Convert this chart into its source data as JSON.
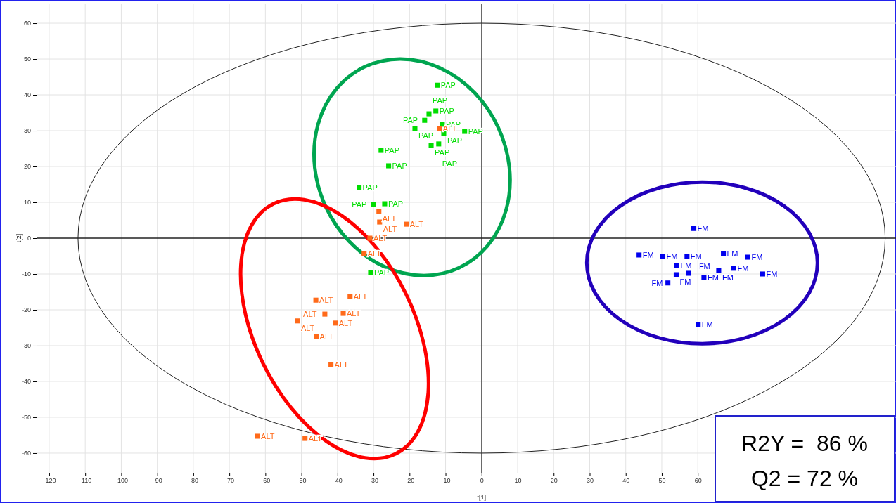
{
  "chart_data": {
    "type": "scatter",
    "xlabel": "t[1]",
    "ylabel": "t[2]",
    "xlim": [
      -123.5,
      115
    ],
    "ylim": [
      -65.5,
      65.5
    ],
    "xticks": [
      -120,
      -110,
      -100,
      -90,
      -80,
      -70,
      -60,
      -50,
      -40,
      -30,
      -20,
      -10,
      0,
      10,
      20,
      30,
      40,
      50,
      60
    ],
    "yticks": [
      -60,
      -50,
      -40,
      -30,
      -20,
      -10,
      0,
      10,
      20,
      30,
      40,
      50,
      60
    ],
    "grid": true,
    "legend": false,
    "marker": "square",
    "ref_lines": [
      {
        "axis": "x",
        "value": 0,
        "color": "#555555"
      },
      {
        "axis": "y",
        "value": 0,
        "color": "#222222"
      }
    ],
    "annotations": [
      "R2Y =  86 %",
      "Q2 = 72 %"
    ],
    "series": [
      {
        "name": "PAP",
        "color": "#00dd00",
        "x": [
          -12.3,
          -12.7,
          -14.6,
          -15.8,
          -10.9,
          -18.5,
          -10.5,
          -4.7,
          -14.0,
          -11.9,
          -27.9,
          -25.8,
          -34.0,
          -30.0,
          -26.9,
          -30.8
        ],
        "values": [
          42.7,
          35.5,
          34.7,
          32.9,
          31.8,
          30.6,
          29.2,
          29.8,
          25.9,
          26.3,
          24.5,
          20.2,
          14.1,
          9.4,
          9.6,
          -9.6
        ]
      },
      {
        "name": "ALT",
        "color": "#ff6a1a",
        "x": [
          -11.7,
          -28.5,
          -28.3,
          -20.9,
          -31.0,
          -32.6,
          -46.0,
          -36.5,
          -43.5,
          -38.4,
          -51.1,
          -40.6,
          -45.9,
          -41.8,
          -62.2,
          -49.0
        ],
        "values": [
          30.6,
          7.5,
          4.5,
          3.9,
          0,
          -4.3,
          -17.3,
          -16.3,
          -21.2,
          -21.0,
          -23.1,
          -23.7,
          -27.5,
          -35.3,
          -55.3,
          -55.9
        ]
      },
      {
        "name": "FM",
        "color": "#0000ee",
        "x": [
          58.9,
          43.7,
          50.3,
          57.0,
          67.1,
          73.9,
          54.2,
          54.0,
          57.4,
          61.7,
          65.8,
          70.0,
          78.0,
          51.7,
          60.1
        ],
        "values": [
          2.7,
          -4.7,
          -5.1,
          -5.1,
          -4.3,
          -5.3,
          -7.6,
          -10.2,
          -9.8,
          -11.0,
          -9.0,
          -8.4,
          -10.0,
          -12.5,
          -24.1
        ]
      }
    ]
  }
}
